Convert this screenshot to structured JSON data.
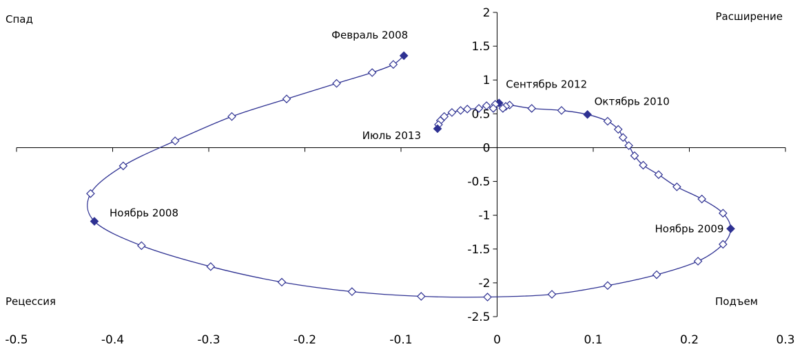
{
  "chart_data": {
    "type": "scatter",
    "title": "",
    "xlabel": "",
    "ylabel": "",
    "xlim": [
      -0.5,
      0.3
    ],
    "ylim": [
      -2.5,
      2
    ],
    "x_ticks": [
      "-0.5",
      "-0.4",
      "-0.3",
      "-0.2",
      "-0.1",
      "0",
      "0.1",
      "0.2",
      "0.3"
    ],
    "y_ticks": [
      "2",
      "1.5",
      "1",
      "0.5",
      "0",
      "-0.5",
      "-1",
      "-1.5",
      "-2",
      "-2.5"
    ],
    "grid": false,
    "legend": "none",
    "line_color": "#2e3192",
    "marker": "diamond",
    "quadrant_labels": {
      "top_left": "Спад",
      "top_right": "Расширение",
      "bottom_left": "Рецессия",
      "bottom_right": "Подъем"
    },
    "series": [
      {
        "points": [
          [
            -0.097,
            1.36
          ],
          [
            -0.108,
            1.23
          ],
          [
            -0.13,
            1.11
          ],
          [
            -0.167,
            0.95
          ],
          [
            -0.219,
            0.72
          ],
          [
            -0.276,
            0.46
          ],
          [
            -0.335,
            0.1
          ],
          [
            -0.389,
            -0.27
          ],
          [
            -0.423,
            -0.68
          ],
          [
            -0.419,
            -1.09
          ],
          [
            -0.37,
            -1.45
          ],
          [
            -0.298,
            -1.76
          ],
          [
            -0.224,
            -1.99
          ],
          [
            -0.151,
            -2.13
          ],
          [
            -0.079,
            -2.2
          ],
          [
            -0.01,
            -2.21
          ],
          [
            0.057,
            -2.17
          ],
          [
            0.115,
            -2.04
          ],
          [
            0.166,
            -1.88
          ],
          [
            0.209,
            -1.68
          ],
          [
            0.235,
            -1.43
          ],
          [
            0.243,
            -1.2
          ],
          [
            0.235,
            -0.97
          ],
          [
            0.213,
            -0.76
          ],
          [
            0.187,
            -0.58
          ],
          [
            0.168,
            -0.4
          ],
          [
            0.152,
            -0.26
          ],
          [
            0.143,
            -0.12
          ],
          [
            0.137,
            0.03
          ],
          [
            0.131,
            0.15
          ],
          [
            0.126,
            0.27
          ],
          [
            0.115,
            0.39
          ],
          [
            0.094,
            0.49
          ],
          [
            0.067,
            0.55
          ],
          [
            0.036,
            0.58
          ],
          [
            0.013,
            0.63
          ],
          [
            0.009,
            0.61
          ],
          [
            0.006,
            0.58
          ],
          [
            0.002,
            0.66
          ],
          [
            -0.002,
            0.64
          ],
          [
            -0.004,
            0.58
          ],
          [
            -0.011,
            0.62
          ],
          [
            -0.019,
            0.58
          ],
          [
            -0.031,
            0.57
          ],
          [
            -0.038,
            0.55
          ],
          [
            -0.047,
            0.52
          ],
          [
            -0.055,
            0.46
          ],
          [
            -0.059,
            0.4
          ],
          [
            -0.061,
            0.34
          ],
          [
            -0.062,
            0.28
          ]
        ],
        "filled_indices": [
          0,
          9,
          21,
          32,
          38,
          49
        ]
      }
    ],
    "annotations": [
      {
        "text": "Февраль 2008",
        "x": -0.097,
        "y": 1.36
      },
      {
        "text": "Ноябрь 2008",
        "x": -0.419,
        "y": -1.09
      },
      {
        "text": "Ноябрь 2009",
        "x": 0.243,
        "y": -1.2
      },
      {
        "text": "Октябрь 2010",
        "x": 0.094,
        "y": 0.49
      },
      {
        "text": "Сентябрь 2012",
        "x": 0.002,
        "y": 0.66
      },
      {
        "text": "Июль 2013",
        "x": -0.062,
        "y": 0.28
      }
    ]
  }
}
